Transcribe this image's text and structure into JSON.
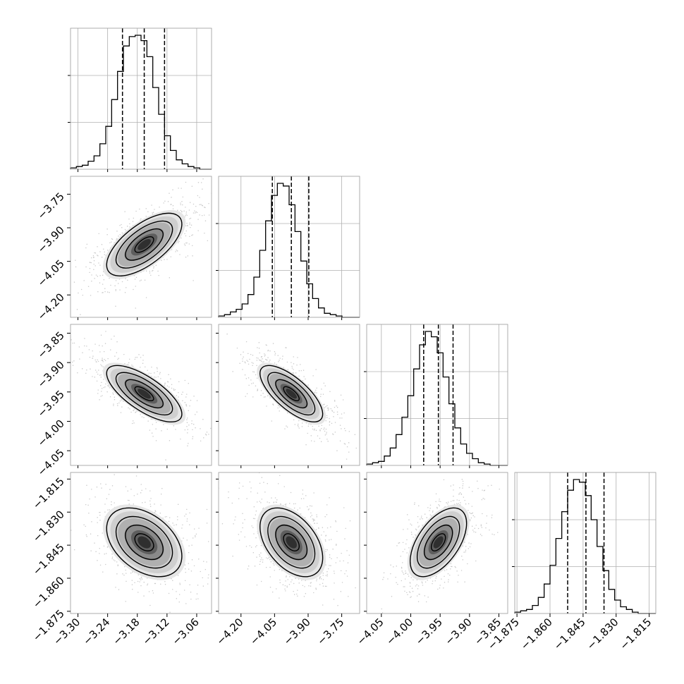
{
  "chart_data": {
    "type": "corner",
    "grid": true,
    "parameters": [
      {
        "range": [
          -3.315,
          -3.03
        ],
        "ticks": [
          "-3.30",
          "-3.24",
          "-3.18",
          "-3.12",
          "-3.06"
        ],
        "tick_values": [
          -3.3,
          -3.24,
          -3.18,
          -3.12,
          -3.06
        ]
      },
      {
        "range": [
          -4.3,
          -3.67
        ],
        "ticks": [
          "-4.20",
          "-4.05",
          "-3.90",
          "-3.75"
        ],
        "tick_values": [
          -4.2,
          -4.05,
          -3.9,
          -3.75
        ]
      },
      {
        "range": [
          -4.075,
          -3.835
        ],
        "ticks": [
          "-4.05",
          "-4.00",
          "-3.95",
          "-3.90",
          "-3.85"
        ],
        "tick_values": [
          -4.05,
          -4.0,
          -3.95,
          -3.9,
          -3.85
        ]
      },
      {
        "range": [
          -1.876,
          -1.812
        ],
        "ticks": [
          "-1.875",
          "-1.860",
          "-1.845",
          "-1.830",
          "-1.815"
        ],
        "tick_values": [
          -1.875,
          -1.86,
          -1.845,
          -1.83,
          -1.815
        ]
      }
    ],
    "histograms": [
      {
        "param": 0,
        "bins": 24,
        "counts": [
          1,
          2,
          3,
          6,
          10,
          19,
          32,
          52,
          73,
          92,
          99,
          100,
          96,
          84,
          61,
          41,
          25,
          14,
          7,
          4,
          2,
          1,
          0,
          0
        ],
        "quantiles": [
          -3.21,
          -3.166,
          -3.125
        ]
      },
      {
        "param": 1,
        "bins": 24,
        "counts": [
          1,
          2,
          4,
          6,
          10,
          17,
          30,
          50,
          72,
          91,
          100,
          98,
          84,
          64,
          42,
          25,
          14,
          7,
          3,
          2,
          1,
          0,
          0,
          0
        ],
        "quantiles": [
          -4.06,
          -3.975,
          -3.897
        ]
      },
      {
        "param": 2,
        "bins": 24,
        "counts": [
          1,
          2,
          3,
          7,
          13,
          23,
          36,
          52,
          72,
          90,
          100,
          96,
          84,
          66,
          46,
          28,
          16,
          9,
          5,
          2,
          1,
          0,
          0,
          0
        ],
        "quantiles": [
          -3.978,
          -3.953,
          -3.928
        ]
      },
      {
        "param": 3,
        "bins": 24,
        "counts": [
          1,
          2,
          3,
          6,
          12,
          22,
          36,
          56,
          76,
          92,
          100,
          98,
          88,
          70,
          50,
          32,
          18,
          10,
          5,
          3,
          1,
          0,
          0,
          0
        ],
        "quantiles": [
          -1.852,
          -1.8437,
          -1.8355
        ]
      }
    ],
    "pairs": [
      {
        "x": 0,
        "y": 1,
        "mean": [
          -3.166,
          -3.975
        ],
        "sd": [
          0.038,
          0.07
        ],
        "rho": 0.65
      },
      {
        "x": 0,
        "y": 2,
        "mean": [
          -3.166,
          -3.953
        ],
        "sd": [
          0.038,
          0.024
        ],
        "rho": -0.72
      },
      {
        "x": 1,
        "y": 2,
        "mean": [
          -3.975,
          -3.953
        ],
        "sd": [
          0.07,
          0.024
        ],
        "rho": -0.72
      },
      {
        "x": 0,
        "y": 3,
        "mean": [
          -3.166,
          -1.8437
        ],
        "sd": [
          0.038,
          0.0078
        ],
        "rho": -0.4
      },
      {
        "x": 1,
        "y": 3,
        "mean": [
          -3.975,
          -1.8437
        ],
        "sd": [
          0.07,
          0.0078
        ],
        "rho": -0.45
      },
      {
        "x": 2,
        "y": 3,
        "mean": [
          -3.953,
          -1.8437
        ],
        "sd": [
          0.024,
          0.0078
        ],
        "rho": 0.55
      }
    ],
    "contour_levels": [
      0.5,
      1.0,
      1.5,
      2.0
    ],
    "colors": {
      "line": "#000000",
      "grid": "#b0b0b0",
      "points": "#8c8c8c",
      "frame": "#9a9a9a"
    }
  }
}
